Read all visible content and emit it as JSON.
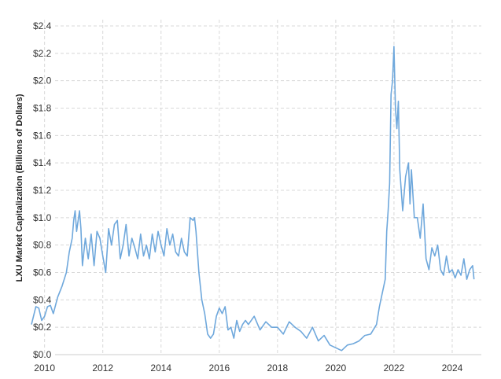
{
  "chart_data": {
    "type": "line",
    "title": "",
    "xlabel": "",
    "ylabel": "LXU Market Capitalization (Billions of Dollars)",
    "xlim": [
      2009.55,
      2025.0
    ],
    "ylim": [
      0.0,
      2.4
    ],
    "y_ticks": [
      0.0,
      0.2,
      0.4,
      0.6,
      0.8,
      1.0,
      1.2,
      1.4,
      1.6,
      1.8,
      2.0,
      2.2,
      2.4
    ],
    "y_tick_labels": [
      "$0.0",
      "$0.2",
      "$0.4",
      "$0.6",
      "$0.8",
      "$1.0",
      "$1.2",
      "$1.4",
      "$1.6",
      "$1.8",
      "$2.0",
      "$2.2",
      "$2.4"
    ],
    "x_ticks": [
      2010,
      2012,
      2014,
      2016,
      2018,
      2020,
      2022,
      2024
    ],
    "x_tick_labels": [
      "2010",
      "2012",
      "2014",
      "2016",
      "2018",
      "2020",
      "2022",
      "2024"
    ],
    "grid": true,
    "line_color": "#6fa8dc",
    "series": [
      {
        "x": [
          2009.55,
          2009.7,
          2009.8,
          2009.9,
          2010.0,
          2010.1,
          2010.2,
          2010.3,
          2010.45,
          2010.6,
          2010.75,
          2010.85,
          2010.95,
          2011.0,
          2011.05,
          2011.1,
          2011.2,
          2011.25,
          2011.3,
          2011.4,
          2011.5,
          2011.6,
          2011.7,
          2011.8,
          2011.9,
          2012.0,
          2012.1,
          2012.2,
          2012.3,
          2012.4,
          2012.5,
          2012.6,
          2012.7,
          2012.8,
          2012.9,
          2013.0,
          2013.1,
          2013.2,
          2013.3,
          2013.4,
          2013.5,
          2013.6,
          2013.7,
          2013.8,
          2013.9,
          2014.0,
          2014.1,
          2014.2,
          2014.3,
          2014.4,
          2014.5,
          2014.6,
          2014.7,
          2014.8,
          2014.9,
          2015.0,
          2015.1,
          2015.15,
          2015.2,
          2015.3,
          2015.4,
          2015.5,
          2015.6,
          2015.7,
          2015.8,
          2015.9,
          2016.0,
          2016.1,
          2016.2,
          2016.3,
          2016.4,
          2016.5,
          2016.6,
          2016.7,
          2016.8,
          2016.9,
          2017.0,
          2017.2,
          2017.4,
          2017.6,
          2017.8,
          2018.0,
          2018.2,
          2018.4,
          2018.6,
          2018.8,
          2019.0,
          2019.2,
          2019.4,
          2019.6,
          2019.8,
          2020.0,
          2020.2,
          2020.4,
          2020.6,
          2020.8,
          2021.0,
          2021.2,
          2021.4,
          2021.5,
          2021.6,
          2021.7,
          2021.75,
          2021.8,
          2021.85,
          2021.9,
          2021.95,
          2022.0,
          2022.05,
          2022.1,
          2022.15,
          2022.2,
          2022.3,
          2022.4,
          2022.5,
          2022.55,
          2022.6,
          2022.7,
          2022.8,
          2022.9,
          2023.0,
          2023.1,
          2023.2,
          2023.3,
          2023.4,
          2023.5,
          2023.6,
          2023.7,
          2023.8,
          2023.9,
          2024.0,
          2024.1,
          2024.2,
          2024.3,
          2024.4,
          2024.5,
          2024.6,
          2024.7,
          2024.75
        ],
        "y": [
          0.22,
          0.35,
          0.34,
          0.25,
          0.28,
          0.35,
          0.36,
          0.3,
          0.42,
          0.5,
          0.6,
          0.75,
          0.85,
          0.98,
          1.05,
          0.9,
          1.05,
          0.92,
          0.65,
          0.85,
          0.7,
          0.88,
          0.65,
          0.9,
          0.85,
          0.72,
          0.6,
          0.92,
          0.8,
          0.95,
          0.98,
          0.7,
          0.8,
          0.95,
          0.72,
          0.85,
          0.78,
          0.7,
          0.88,
          0.72,
          0.8,
          0.7,
          0.88,
          0.75,
          0.9,
          0.8,
          0.72,
          0.92,
          0.8,
          0.88,
          0.75,
          0.72,
          0.85,
          0.75,
          0.72,
          1.0,
          0.98,
          1.0,
          0.9,
          0.6,
          0.4,
          0.3,
          0.15,
          0.12,
          0.15,
          0.28,
          0.34,
          0.3,
          0.35,
          0.18,
          0.2,
          0.12,
          0.25,
          0.17,
          0.22,
          0.25,
          0.22,
          0.28,
          0.18,
          0.24,
          0.2,
          0.2,
          0.15,
          0.24,
          0.2,
          0.17,
          0.12,
          0.2,
          0.1,
          0.14,
          0.07,
          0.05,
          0.03,
          0.07,
          0.08,
          0.1,
          0.14,
          0.15,
          0.22,
          0.35,
          0.45,
          0.55,
          0.9,
          1.05,
          1.25,
          1.9,
          2.0,
          2.25,
          1.8,
          1.65,
          1.85,
          1.35,
          1.05,
          1.3,
          1.4,
          1.1,
          1.35,
          1.0,
          1.0,
          0.85,
          1.1,
          0.7,
          0.62,
          0.78,
          0.72,
          0.8,
          0.62,
          0.58,
          0.72,
          0.6,
          0.62,
          0.56,
          0.62,
          0.58,
          0.7,
          0.55,
          0.62,
          0.65,
          0.55
        ]
      }
    ]
  }
}
